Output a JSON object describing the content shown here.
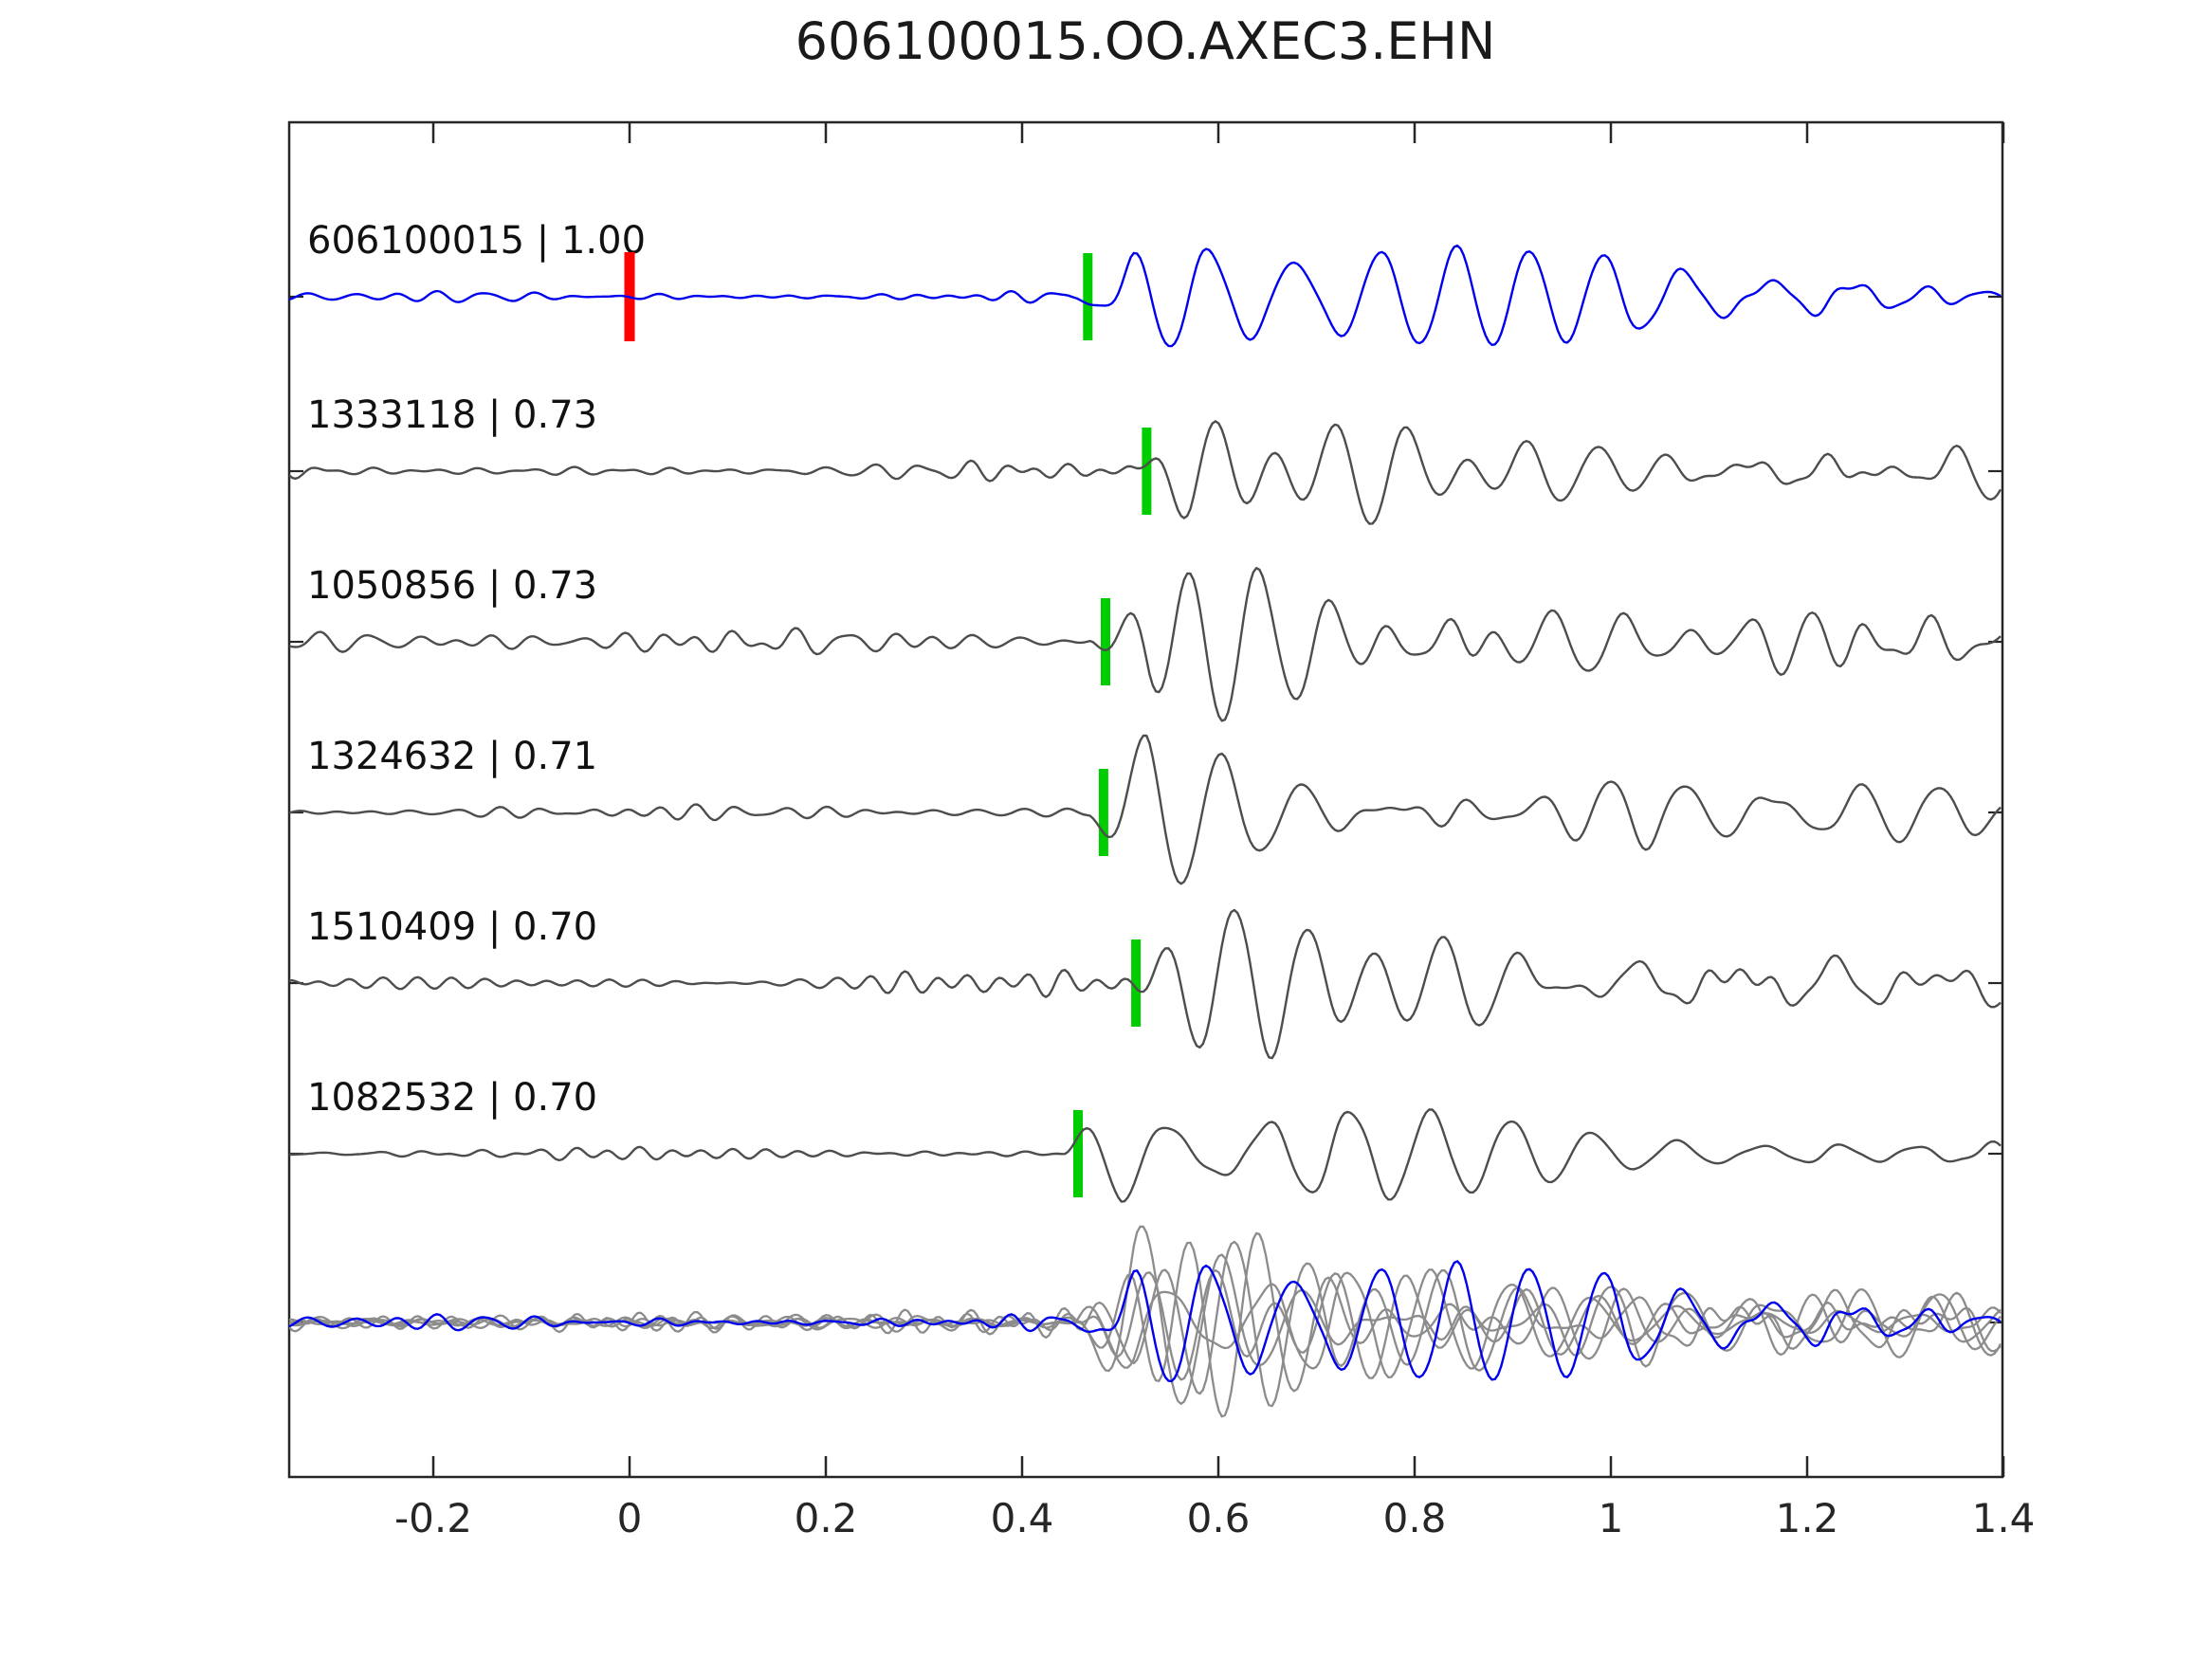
{
  "chart_data": {
    "type": "line",
    "title": "606100015.OO.AXEC3.EHN",
    "xlabel": "",
    "ylabel": "",
    "xlim": [
      -0.347,
      1.4
    ],
    "x_ticks": [
      -0.2,
      0,
      0.2,
      0.4,
      0.6,
      0.8,
      1,
      1.2,
      1.4
    ],
    "x_tick_labels": [
      "-0.2",
      "0",
      "0.2",
      "0.4",
      "0.6",
      "0.8",
      "1",
      "1.2",
      "1.4"
    ],
    "grid": false,
    "legend": "none",
    "description": "Template-matching waveform comparison: reference event (blue) over 5 matched detections (gray), green bars = pick times, red bar = reference zero time, bottom row = all traces overlaid aligned on pick.",
    "colors": {
      "reference_trace": "#0000ee",
      "match_trace": "#4d4d4d",
      "overlay_gray": "#8c8c8c",
      "pick_marker": "#00cc00",
      "zero_marker": "#ff0000",
      "axis": "#262626"
    },
    "zero_marker": {
      "trace_index": 0,
      "time": 0.0
    },
    "traces": [
      {
        "event_id": "606100015",
        "correlation": "1.00",
        "label": "606100015 | 1.00",
        "pick_time": 0.467,
        "is_reference": true,
        "noise_amp": 9,
        "burst_amp": 100,
        "seed": 11
      },
      {
        "event_id": "1333118",
        "correlation": "0.73",
        "label": "1333118 | 0.73",
        "pick_time": 0.527,
        "is_reference": false,
        "noise_amp": 11,
        "burst_amp": 98,
        "seed": 23
      },
      {
        "event_id": "1050856",
        "correlation": "0.73",
        "label": "1050856 | 0.73",
        "pick_time": 0.485,
        "is_reference": false,
        "noise_amp": 23,
        "burst_amp": 96,
        "seed": 37
      },
      {
        "event_id": "1324632",
        "correlation": "0.71",
        "label": "1324632 | 0.71",
        "pick_time": 0.483,
        "is_reference": false,
        "noise_amp": 10,
        "burst_amp": 100,
        "seed": 41
      },
      {
        "event_id": "1510409",
        "correlation": "0.70",
        "label": "1510409 | 0.70",
        "pick_time": 0.516,
        "is_reference": false,
        "noise_amp": 12,
        "burst_amp": 95,
        "seed": 53
      },
      {
        "event_id": "1082532",
        "correlation": "0.70",
        "label": "1082532 | 0.70",
        "pick_time": 0.457,
        "is_reference": false,
        "noise_amp": 9,
        "burst_amp": 102,
        "seed": 67
      }
    ],
    "overlay_row": {
      "aligned_onset": 0.455,
      "burst_amp": 118,
      "noise_amp": 13,
      "note": "all six traces overlaid; reference drawn in blue on top"
    }
  }
}
